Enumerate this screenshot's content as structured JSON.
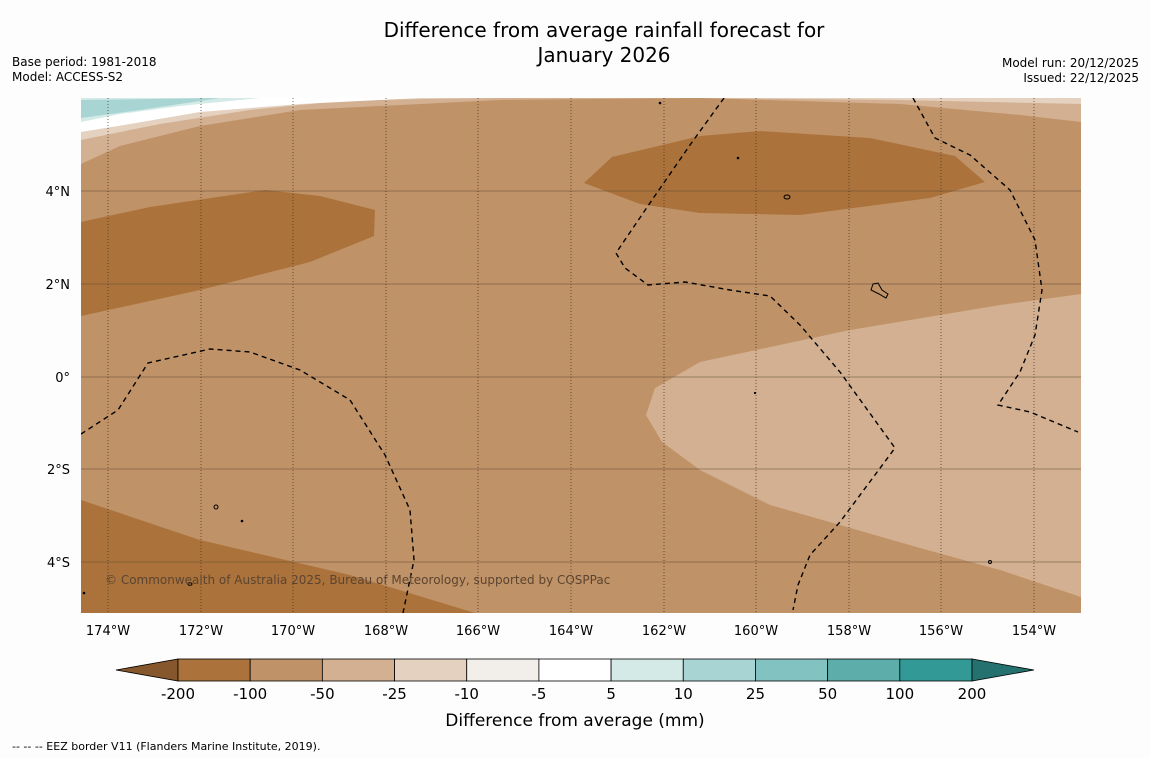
{
  "title_line1": "Difference from average rainfall forecast for",
  "title_line2": "January 2026",
  "meta_left": {
    "base_period": "Base period: 1981-2018",
    "model": "Model: ACCESS-S2"
  },
  "meta_right": {
    "model_run": "Model run: 20/12/2025",
    "issued": "Issued: 22/12/2025"
  },
  "lat_labels": [
    "4°N",
    "2°N",
    "0°",
    "2°S",
    "4°S"
  ],
  "lon_labels": [
    "174°W",
    "172°W",
    "170°W",
    "168°W",
    "166°W",
    "164°W",
    "162°W",
    "160°W",
    "158°W",
    "156°W",
    "154°W"
  ],
  "copyright": "© Commonwealth of Australia 2025, Bureau of Meteorology, supported by COSPPac",
  "legend": {
    "title": "Difference from average (mm)",
    "tick_labels": [
      "-200",
      "-100",
      "-50",
      "-25",
      "-10",
      "-5",
      "5",
      "10",
      "25",
      "50",
      "100",
      "200"
    ],
    "colors": [
      "#86572d",
      "#ab733b",
      "#c09267",
      "#d2b091",
      "#e4d1c0",
      "#f2efea",
      "#ffffff",
      "#d4eae7",
      "#a8d5d3",
      "#82c3c1",
      "#5dadab",
      "#339996",
      "#24716f"
    ]
  },
  "footnote": "--  --  -- EEZ border V11 (Flanders Marine Institute, 2019)."
}
